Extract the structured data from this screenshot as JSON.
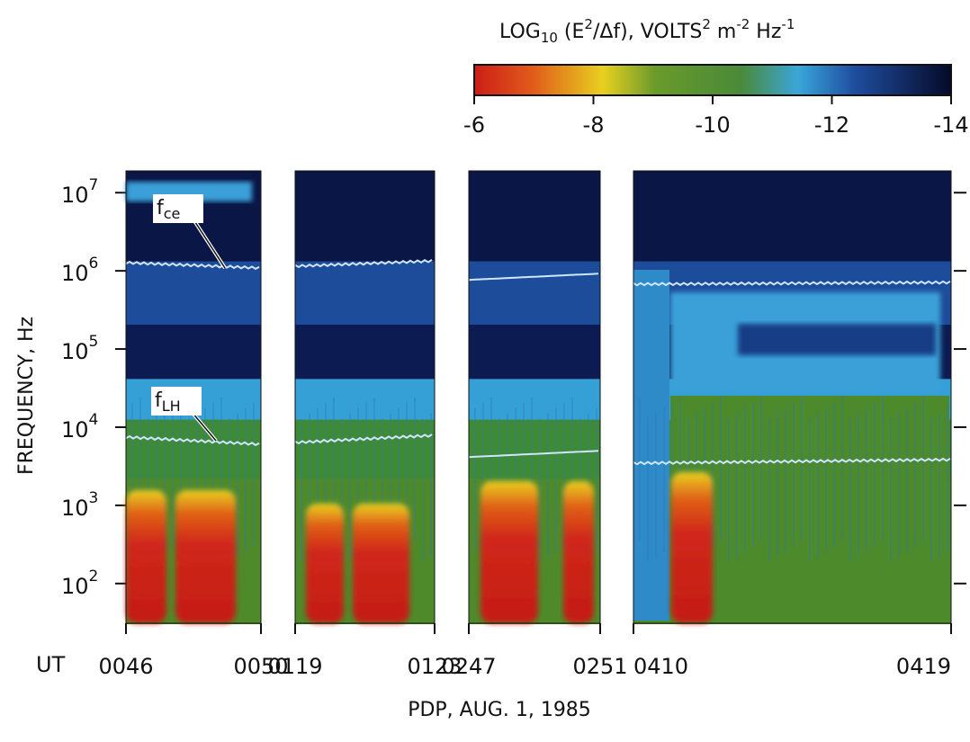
{
  "chart_data": {
    "type": "spectrogram",
    "colorbar": {
      "label_parts": [
        "LOG",
        "10",
        " (E",
        "2",
        "/Δf), VOLTS",
        "2",
        " m",
        "-2",
        " Hz",
        "-1"
      ],
      "lim": [
        -6,
        -14
      ],
      "ticks": [
        -6,
        -8,
        -10,
        -12,
        -14
      ]
    },
    "y_label": "FREQUENCY, Hz",
    "log_y": true,
    "ylim": [
      31,
      19000000
    ],
    "yticks": [
      {
        "value": 100,
        "label": "10",
        "exponent": "2"
      },
      {
        "value": 1000,
        "label": "10",
        "exponent": "3"
      },
      {
        "value": 10000,
        "label": "10",
        "exponent": "4"
      },
      {
        "value": 100000,
        "label": "10",
        "exponent": "5"
      },
      {
        "value": 1000000,
        "label": "10",
        "exponent": "6"
      },
      {
        "value": 10000000,
        "label": "10",
        "exponent": "7"
      }
    ],
    "x_label": "UT",
    "panels": [
      {
        "start": "0046",
        "end": "0050"
      },
      {
        "start": "0119",
        "end": "0123"
      },
      {
        "start": "0247",
        "end": "0251"
      },
      {
        "start": "0410",
        "end": "0419"
      }
    ],
    "annotations": [
      {
        "text": "f",
        "subscript": "ce"
      },
      {
        "text": "f",
        "subscript": "LH"
      }
    ],
    "footer": "PDP,   AUG. 1, 1985"
  }
}
